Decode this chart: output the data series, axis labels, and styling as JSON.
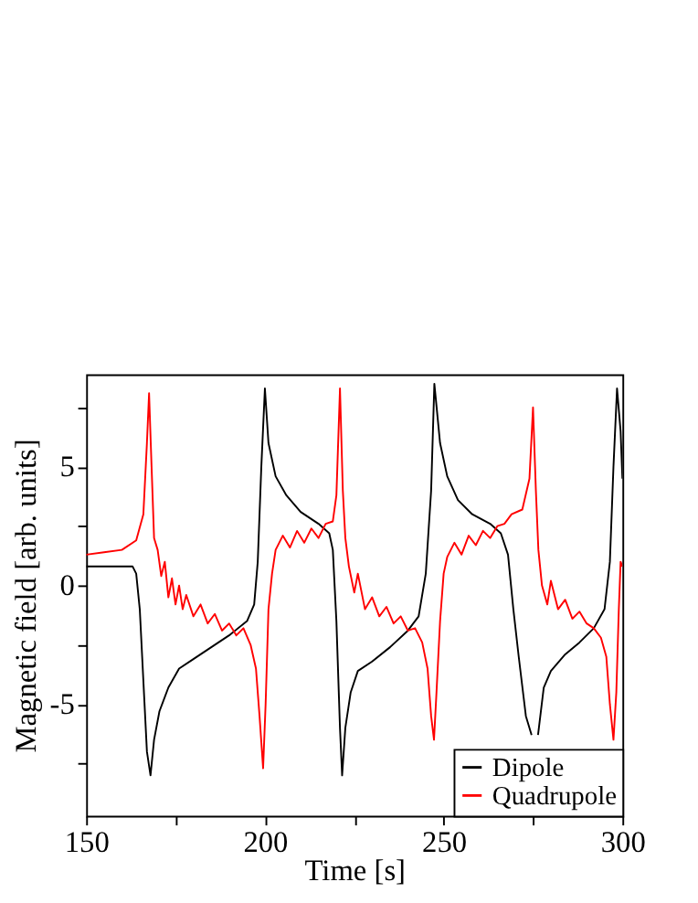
{
  "chart_data": {
    "type": "line",
    "xlabel": "Time [s]",
    "ylabel": "Magnetic field [arb. units]",
    "xlim": [
      150,
      300
    ],
    "xticks": [
      150,
      {
        "value": 175,
        "label": null
      },
      200,
      {
        "value": 225,
        "label": null
      },
      250,
      {
        "value": 275,
        "label": null
      },
      300
    ],
    "ylim": [
      -9.7,
      8.9
    ],
    "yticks": [
      {
        "value": -7.5,
        "label": null
      },
      -5,
      {
        "value": -2.5,
        "label": null
      },
      0,
      {
        "value": 2.5,
        "label": null
      },
      5,
      {
        "value": 7.5,
        "label": null
      }
    ],
    "grid": false,
    "legend": "bottom right",
    "line_style": "solid",
    "marker": "none",
    "series": [
      {
        "name": "Dipole",
        "color": "#000000",
        "x": [
          150,
          160,
          163,
          164,
          165,
          166,
          167,
          168,
          169,
          170.5,
          173,
          176,
          180,
          185,
          190,
          195,
          197,
          198,
          199,
          200,
          201,
          203,
          206,
          210,
          215,
          218,
          219,
          220,
          221,
          221.6,
          222.5,
          224,
          226,
          230,
          235,
          240,
          243,
          245,
          246.5,
          247.4,
          249,
          251,
          254,
          258,
          263,
          266,
          268,
          269.5,
          271,
          273,
          274.6,
          275.5,
          276.4,
          278,
          280,
          284,
          288,
          292,
          295,
          296.5,
          297.5,
          298.5,
          299.5,
          300
        ],
        "values": [
          0.8,
          0.8,
          0.8,
          0.5,
          -1,
          -4,
          -7,
          -8,
          -6.5,
          -5.3,
          -4.3,
          -3.5,
          -3.1,
          -2.6,
          -2.1,
          -1.5,
          -0.8,
          1,
          5,
          8.3,
          6,
          4.6,
          3.8,
          3.1,
          2.6,
          2.2,
          1.5,
          -1.5,
          -6,
          -8,
          -6,
          -4.5,
          -3.6,
          -3.2,
          -2.6,
          -1.9,
          -1.3,
          0.5,
          4,
          8.5,
          6,
          4.6,
          3.6,
          3,
          2.6,
          2.2,
          1.3,
          -1,
          -3,
          -5.5,
          -6.3,
          null,
          -6.3,
          -4.3,
          -3.6,
          -2.9,
          -2.4,
          -1.8,
          -1,
          1,
          5,
          8.3,
          6.5,
          4.5
        ]
      },
      {
        "name": "Quadrupole",
        "color": "#ff0000",
        "x": [
          150,
          155,
          160,
          164,
          166,
          167,
          167.6,
          168.3,
          169,
          170,
          171,
          172,
          173,
          174,
          175,
          176,
          177,
          178,
          180,
          182,
          184,
          186,
          188,
          190,
          192,
          194,
          196,
          197.5,
          198.5,
          199.5,
          200.2,
          201,
          202,
          203,
          205,
          207,
          209,
          211,
          213,
          215,
          217,
          219,
          220,
          221,
          221.8,
          222.5,
          223.5,
          225,
          226,
          228,
          230,
          232,
          234,
          236,
          238,
          240,
          242,
          244,
          245.5,
          246.5,
          247.3,
          248,
          249,
          250,
          251,
          253,
          255,
          257,
          259,
          261,
          263,
          265,
          267,
          269,
          272,
          274,
          275,
          275.8,
          276.5,
          277.5,
          279,
          280,
          282,
          284,
          286,
          288,
          290,
          292,
          294,
          295.5,
          296.5,
          297.5,
          298.3,
          299,
          299.5,
          300
        ],
        "values": [
          1.3,
          1.4,
          1.5,
          1.9,
          3,
          6,
          8.1,
          5,
          2,
          1.5,
          0.4,
          1,
          -0.5,
          0.3,
          -0.8,
          0,
          -1,
          -0.4,
          -1.3,
          -0.8,
          -1.6,
          -1.2,
          -1.9,
          -1.6,
          -2.1,
          -1.8,
          -2.5,
          -3.5,
          -5.5,
          -7.7,
          -5,
          -1,
          0.5,
          1.5,
          2.1,
          1.6,
          2.3,
          1.8,
          2.4,
          2,
          2.6,
          2.7,
          3.8,
          8.3,
          4,
          2,
          0.8,
          -0.3,
          0.5,
          -1,
          -0.5,
          -1.3,
          -0.9,
          -1.6,
          -1.3,
          -1.9,
          -1.8,
          -2.4,
          -3.5,
          -5.5,
          -6.5,
          -4.5,
          -1.5,
          0.5,
          1.2,
          1.8,
          1.3,
          2.1,
          1.7,
          2.3,
          2,
          2.5,
          2.6,
          3,
          3.2,
          4.5,
          7.5,
          4,
          1.5,
          0,
          -0.8,
          0.2,
          -1,
          -0.6,
          -1.4,
          -1.1,
          -1.6,
          -1.8,
          -2.2,
          -3,
          -5,
          -6.5,
          -4.5,
          -1,
          1,
          0.8
        ]
      }
    ]
  }
}
